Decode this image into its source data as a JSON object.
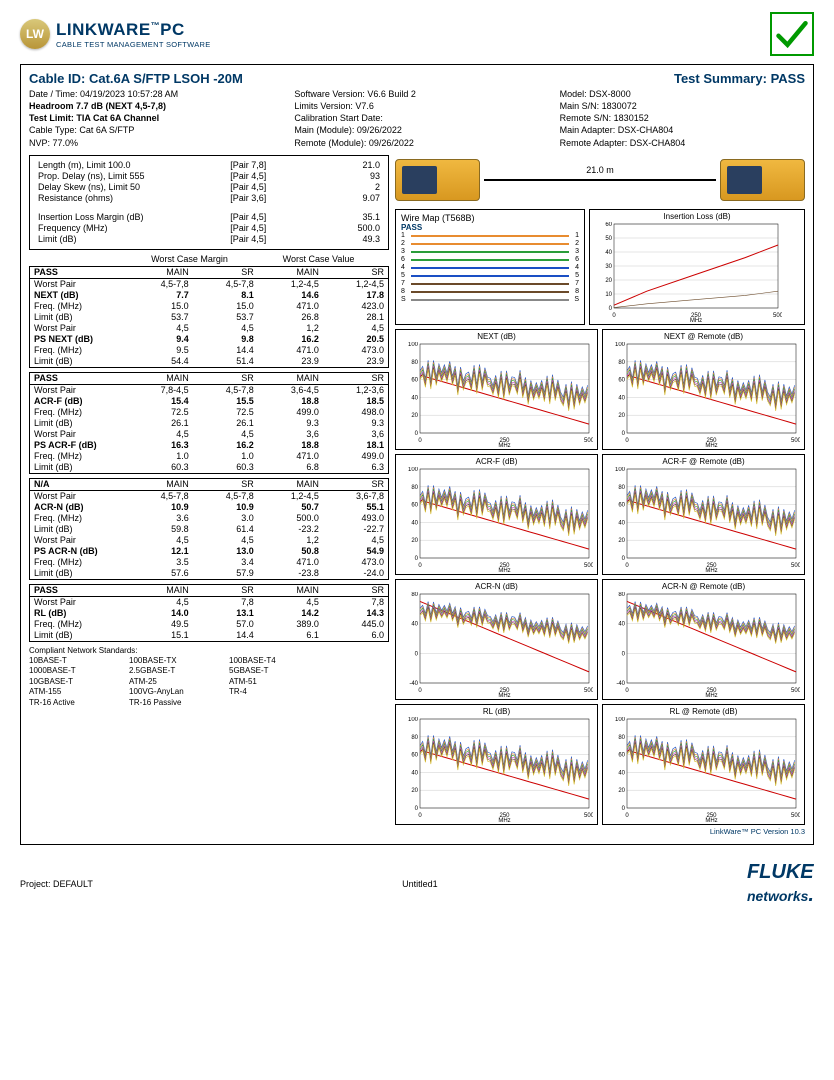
{
  "logo": {
    "badge": "LW",
    "name": "LINKWARE",
    "suffix": "PC",
    "tm": "™",
    "tagline": "CABLE TEST MANAGEMENT SOFTWARE"
  },
  "summary": {
    "cable_id_lbl": "Cable ID:",
    "cable_id": "Cat.6A S/FTP LSOH -20M",
    "test_summary_lbl": "Test Summary:",
    "result": "PASS"
  },
  "hdr": {
    "c1": {
      "l1": "Date / Time: 04/19/2023  10:57:28 AM",
      "l2": "Headroom 7.7 dB (NEXT 4,5-7,8)",
      "l3": "Test Limit: TIA Cat 6A Channel",
      "l4": "Cable Type: Cat 6A S/FTP",
      "l5": "NVP: 77.0%"
    },
    "c2": {
      "l1": "Software Version: V6.6 Build 2",
      "l2": "Limits Version: V7.6",
      "l3": "Calibration Start Date:",
      "l4": "Main (Module): 09/26/2022",
      "l5": "Remote (Module): 09/26/2022"
    },
    "c3": {
      "l1": "Model: DSX-8000",
      "l2": "Main S/N: 1830072",
      "l3": "Remote S/N: 1830152",
      "l4": "Main Adapter: DSX-CHA804",
      "l5": "Remote Adapter: DSX-CHA804"
    }
  },
  "basic": [
    {
      "lbl": "Length (m), Limit 100.0",
      "pair": "[Pair 7,8]",
      "val": "21.0"
    },
    {
      "lbl": "Prop. Delay (ns), Limit 555",
      "pair": "[Pair 4,5]",
      "val": "93"
    },
    {
      "lbl": "Delay Skew (ns), Limit 50",
      "pair": "[Pair 4,5]",
      "val": "2"
    },
    {
      "lbl": "Resistance (ohms)",
      "pair": "[Pair 3,6]",
      "val": "9.07"
    }
  ],
  "il": [
    {
      "lbl": "Insertion Loss Margin (dB)",
      "pair": "[Pair 4,5]",
      "val": "35.1"
    },
    {
      "lbl": "Frequency (MHz)",
      "pair": "[Pair 4,5]",
      "val": "500.0"
    },
    {
      "lbl": "Limit (dB)",
      "pair": "[Pair 4,5]",
      "val": "49.3"
    }
  ],
  "wcm": {
    "h1": "Worst Case Margin",
    "h2": "Worst Case Value"
  },
  "cols": {
    "main": "MAIN",
    "sr": "SR"
  },
  "tables": [
    {
      "status": "PASS",
      "rows": [
        {
          "l": "Worst Pair",
          "v": [
            "4,5-7,8",
            "4,5-7,8",
            "1,2-4,5",
            "1,2-4,5"
          ]
        },
        {
          "l": "NEXT (dB)",
          "b": true,
          "v": [
            "7.7",
            "8.1",
            "14.6",
            "17.8"
          ]
        },
        {
          "l": "Freq. (MHz)",
          "v": [
            "15.0",
            "15.0",
            "471.0",
            "423.0"
          ]
        },
        {
          "l": "Limit (dB)",
          "v": [
            "53.7",
            "53.7",
            "26.8",
            "28.1"
          ]
        },
        {
          "l": "Worst Pair",
          "v": [
            "4,5",
            "4,5",
            "1,2",
            "4,5"
          ]
        },
        {
          "l": "PS NEXT (dB)",
          "b": true,
          "v": [
            "9.4",
            "9.8",
            "16.2",
            "20.5"
          ]
        },
        {
          "l": "Freq. (MHz)",
          "v": [
            "9.5",
            "14.4",
            "471.0",
            "473.0"
          ]
        },
        {
          "l": "Limit (dB)",
          "v": [
            "54.4",
            "51.4",
            "23.9",
            "23.9"
          ]
        }
      ]
    },
    {
      "status": "PASS",
      "rows": [
        {
          "l": "Worst Pair",
          "v": [
            "7,8-4,5",
            "4,5-7,8",
            "3,6-4,5",
            "1,2-3,6"
          ]
        },
        {
          "l": "ACR-F (dB)",
          "b": true,
          "v": [
            "15.4",
            "15.5",
            "18.8",
            "18.5"
          ]
        },
        {
          "l": "Freq. (MHz)",
          "v": [
            "72.5",
            "72.5",
            "499.0",
            "498.0"
          ]
        },
        {
          "l": "Limit (dB)",
          "v": [
            "26.1",
            "26.1",
            "9.3",
            "9.3"
          ]
        },
        {
          "l": "Worst Pair",
          "v": [
            "4,5",
            "4,5",
            "3,6",
            "3,6"
          ]
        },
        {
          "l": "PS ACR-F (dB)",
          "b": true,
          "v": [
            "16.3",
            "16.2",
            "18.8",
            "18.1"
          ]
        },
        {
          "l": "Freq. (MHz)",
          "v": [
            "1.0",
            "1.0",
            "471.0",
            "499.0"
          ]
        },
        {
          "l": "Limit (dB)",
          "v": [
            "60.3",
            "60.3",
            "6.8",
            "6.3"
          ]
        }
      ]
    },
    {
      "status": "N/A",
      "rows": [
        {
          "l": "Worst Pair",
          "v": [
            "4,5-7,8",
            "4,5-7,8",
            "1,2-4,5",
            "3,6-7,8"
          ]
        },
        {
          "l": "ACR-N (dB)",
          "b": true,
          "v": [
            "10.9",
            "10.9",
            "50.7",
            "55.1"
          ]
        },
        {
          "l": "Freq. (MHz)",
          "v": [
            "3.6",
            "3.0",
            "500.0",
            "493.0"
          ]
        },
        {
          "l": "Limit (dB)",
          "v": [
            "59.8",
            "61.4",
            "-23.2",
            "-22.7"
          ]
        },
        {
          "l": "Worst Pair",
          "v": [
            "4,5",
            "4,5",
            "1,2",
            "4,5"
          ]
        },
        {
          "l": "PS ACR-N (dB)",
          "b": true,
          "v": [
            "12.1",
            "13.0",
            "50.8",
            "54.9"
          ]
        },
        {
          "l": "Freq. (MHz)",
          "v": [
            "3.5",
            "3.4",
            "471.0",
            "473.0"
          ]
        },
        {
          "l": "Limit (dB)",
          "v": [
            "57.6",
            "57.9",
            "-23.8",
            "-24.0"
          ]
        }
      ]
    },
    {
      "status": "PASS",
      "rows": [
        {
          "l": "Worst Pair",
          "v": [
            "4,5",
            "7,8",
            "4,5",
            "7,8"
          ]
        },
        {
          "l": "RL (dB)",
          "b": true,
          "v": [
            "14.0",
            "13.1",
            "14.2",
            "14.3"
          ]
        },
        {
          "l": "Freq. (MHz)",
          "v": [
            "49.5",
            "57.0",
            "389.0",
            "445.0"
          ]
        },
        {
          "l": "Limit (dB)",
          "v": [
            "15.1",
            "14.4",
            "6.1",
            "6.0"
          ]
        }
      ]
    }
  ],
  "standards": {
    "title": "Compliant Network Standards:",
    "rows": [
      [
        "10BASE-T",
        "100BASE-TX",
        "100BASE-T4"
      ],
      [
        "1000BASE-T",
        "2.5GBASE-T",
        "5GBASE-T"
      ],
      [
        "10GBASE-T",
        "ATM-25",
        "ATM-51"
      ],
      [
        "ATM-155",
        "100VG-AnyLan",
        "TR-4"
      ],
      [
        "TR-16 Active",
        "TR-16 Passive",
        ""
      ]
    ]
  },
  "cable_len": "21.0 m",
  "wiremap": {
    "title": "Wire Map (T568B)",
    "pass": "PASS",
    "wires": [
      {
        "n": "1",
        "c": "#e88c30"
      },
      {
        "n": "2",
        "c": "#e88c30"
      },
      {
        "n": "3",
        "c": "#2a9d3a"
      },
      {
        "n": "6",
        "c": "#2a9d3a"
      },
      {
        "n": "4",
        "c": "#1a4fc4"
      },
      {
        "n": "5",
        "c": "#1a4fc4"
      },
      {
        "n": "7",
        "c": "#6b4a2a"
      },
      {
        "n": "8",
        "c": "#6b4a2a"
      },
      {
        "n": "S",
        "c": "#888"
      }
    ]
  },
  "charts": {
    "il": {
      "title": "Insertion Loss (dB)",
      "ylim": [
        0,
        60
      ],
      "xlim": [
        0,
        500
      ],
      "xlabel": "MHz",
      "yticks": [
        0,
        10,
        20,
        30,
        40,
        50,
        60
      ],
      "xticks": [
        0,
        250,
        500
      ],
      "limit": {
        "c": "#cc0000",
        "pts": [
          [
            0,
            2
          ],
          [
            100,
            12
          ],
          [
            250,
            24
          ],
          [
            400,
            36
          ],
          [
            500,
            45
          ]
        ]
      },
      "series": [
        {
          "c": "#6b4a2a",
          "pts": [
            [
              0,
              0.3
            ],
            [
              100,
              3
            ],
            [
              250,
              6
            ],
            [
              400,
              9
            ],
            [
              500,
              12
            ]
          ]
        }
      ]
    },
    "pairs": [
      {
        "title": "NEXT (dB)",
        "ylim": [
          0,
          100
        ],
        "neg": false
      },
      {
        "title": "NEXT @ Remote (dB)",
        "ylim": [
          0,
          100
        ],
        "neg": false
      },
      {
        "title": "ACR-F (dB)",
        "ylim": [
          0,
          100
        ],
        "neg": false
      },
      {
        "title": "ACR-F @ Remote (dB)",
        "ylim": [
          0,
          100
        ],
        "neg": false
      },
      {
        "title": "ACR-N (dB)",
        "ylim": [
          -40,
          80
        ],
        "neg": true
      },
      {
        "title": "ACR-N @ Remote (dB)",
        "ylim": [
          -40,
          80
        ],
        "neg": true
      },
      {
        "title": "RL (dB)",
        "ylim": [
          0,
          100
        ],
        "neg": false
      },
      {
        "title": "RL @ Remote (dB)",
        "ylim": [
          0,
          100
        ],
        "neg": false
      }
    ],
    "trace_colors": [
      "#1a4fc4",
      "#e88c30",
      "#2a9d3a",
      "#c542c5",
      "#6b4a2a",
      "#d4b82a"
    ],
    "limit_color": "#cc0000",
    "grid_color": "#cccccc",
    "xlabel": "MHz",
    "xticks": [
      0,
      250,
      500
    ]
  },
  "footer": {
    "version": "LinkWare™ PC Version 10.3",
    "project": "Project: DEFAULT",
    "file": "Untitled1",
    "brand1": "FLUKE",
    "brand2": "networks"
  }
}
